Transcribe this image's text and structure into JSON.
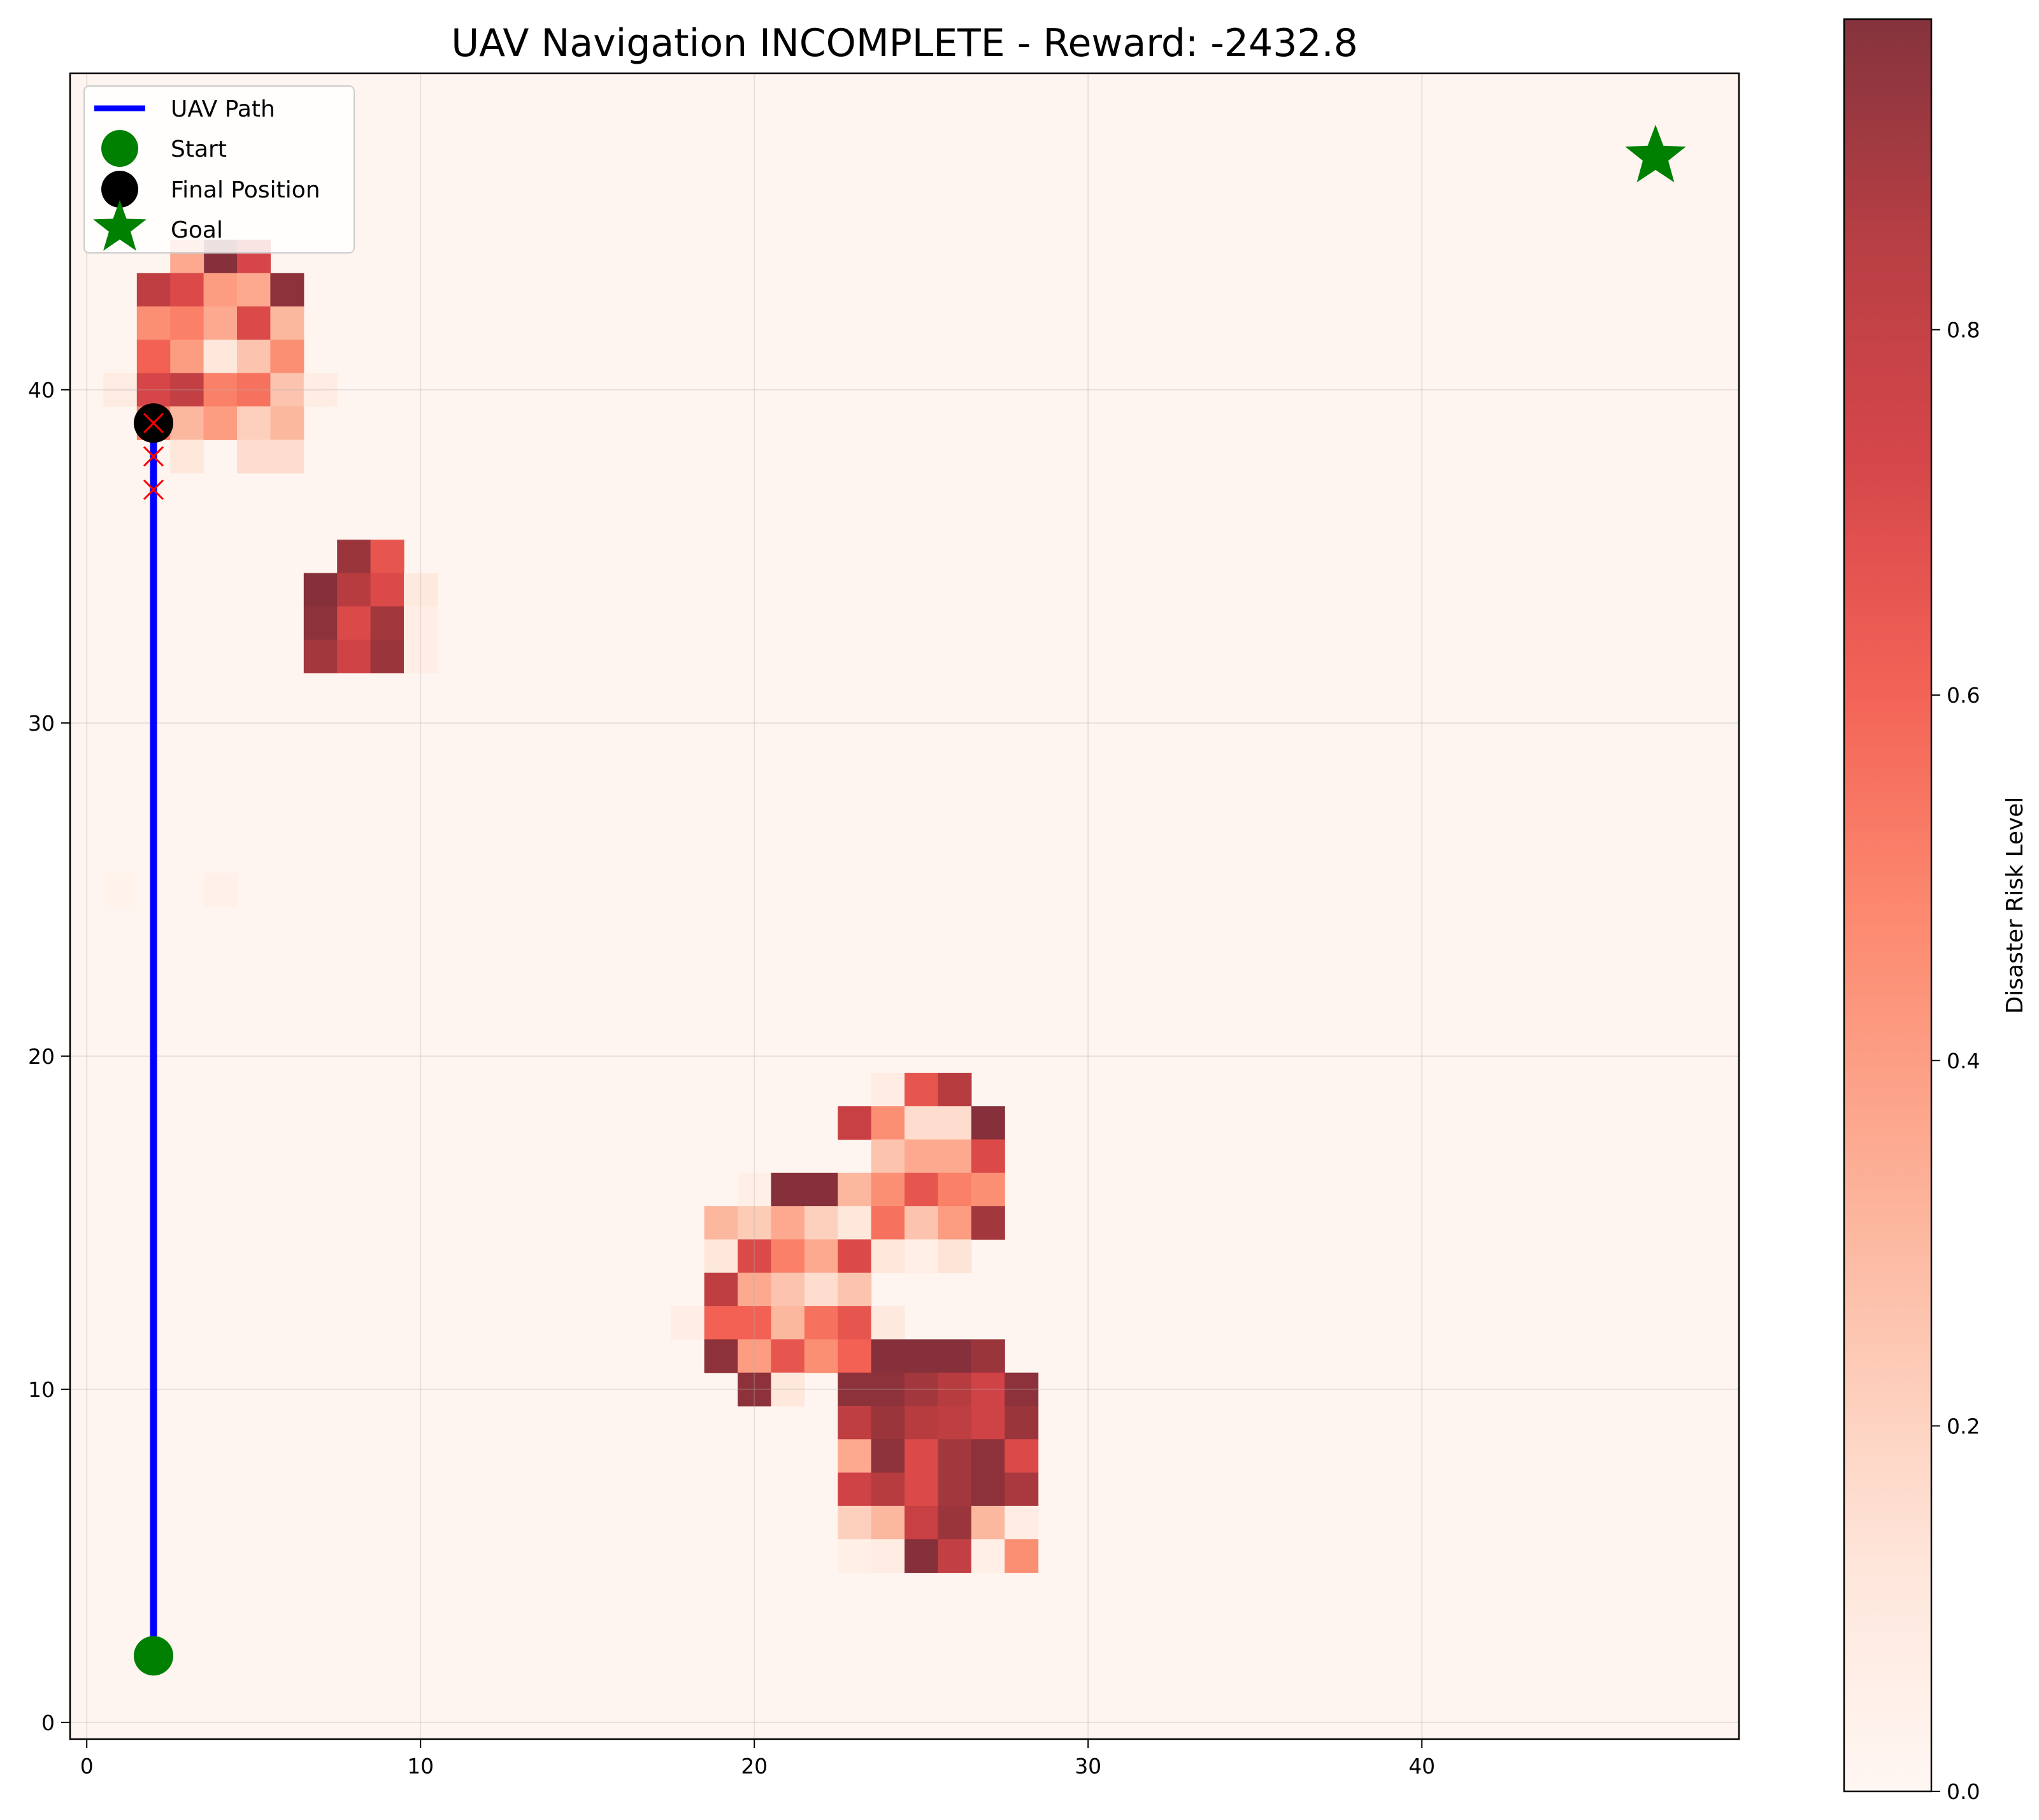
{
  "chart_data": {
    "type": "heatmap",
    "title": "UAV Navigation INCOMPLETE - Reward: -2432.8",
    "xlabel": "",
    "ylabel": "",
    "xlim": [
      -0.5,
      49.5
    ],
    "ylim": [
      -0.5,
      49.5
    ],
    "xticks": [
      0,
      10,
      20,
      30,
      40
    ],
    "yticks": [
      0,
      10,
      20,
      30,
      40
    ],
    "grid": true,
    "colormap": "Reds",
    "colorbar": {
      "label": "Disaster Risk Level",
      "range": [
        0.0,
        0.97
      ],
      "ticks": [
        0.0,
        0.2,
        0.4,
        0.6,
        0.8
      ]
    },
    "risk_cells": [
      [
        4,
        44,
        0.97
      ],
      [
        5,
        44,
        0.72
      ],
      [
        3,
        44,
        0.35
      ],
      [
        2,
        43,
        0.82
      ],
      [
        3,
        43,
        0.7
      ],
      [
        4,
        43,
        0.4
      ],
      [
        5,
        43,
        0.35
      ],
      [
        6,
        43,
        0.95
      ],
      [
        2,
        42,
        0.45
      ],
      [
        3,
        42,
        0.5
      ],
      [
        4,
        42,
        0.35
      ],
      [
        5,
        42,
        0.7
      ],
      [
        6,
        42,
        0.3
      ],
      [
        2,
        41,
        0.6
      ],
      [
        3,
        41,
        0.4
      ],
      [
        4,
        41,
        0.1
      ],
      [
        5,
        41,
        0.25
      ],
      [
        6,
        41,
        0.45
      ],
      [
        1,
        40,
        0.07
      ],
      [
        2,
        40,
        0.72
      ],
      [
        3,
        40,
        0.8
      ],
      [
        4,
        40,
        0.5
      ],
      [
        5,
        40,
        0.55
      ],
      [
        6,
        40,
        0.25
      ],
      [
        7,
        40,
        0.06
      ],
      [
        2,
        39,
        0.5
      ],
      [
        3,
        39,
        0.3
      ],
      [
        4,
        39,
        0.4
      ],
      [
        5,
        39,
        0.2
      ],
      [
        6,
        39,
        0.3
      ],
      [
        3,
        38,
        0.1
      ],
      [
        5,
        38,
        0.15
      ],
      [
        6,
        38,
        0.15
      ],
      [
        8,
        35,
        0.92
      ],
      [
        9,
        35,
        0.65
      ],
      [
        7,
        34,
        0.97
      ],
      [
        8,
        34,
        0.85
      ],
      [
        9,
        34,
        0.7
      ],
      [
        10,
        34,
        0.08
      ],
      [
        7,
        33,
        0.95
      ],
      [
        8,
        33,
        0.7
      ],
      [
        9,
        33,
        0.9
      ],
      [
        10,
        33,
        0.05
      ],
      [
        7,
        32,
        0.9
      ],
      [
        8,
        32,
        0.75
      ],
      [
        9,
        32,
        0.92
      ],
      [
        10,
        32,
        0.05
      ],
      [
        1,
        25,
        0.02
      ],
      [
        4,
        25,
        0.03
      ],
      [
        24,
        19,
        0.06
      ],
      [
        25,
        19,
        0.65
      ],
      [
        26,
        19,
        0.85
      ],
      [
        23,
        18,
        0.78
      ],
      [
        24,
        18,
        0.45
      ],
      [
        25,
        18,
        0.15
      ],
      [
        26,
        18,
        0.15
      ],
      [
        27,
        18,
        0.97
      ],
      [
        24,
        17,
        0.25
      ],
      [
        25,
        17,
        0.35
      ],
      [
        26,
        17,
        0.35
      ],
      [
        27,
        17,
        0.7
      ],
      [
        20,
        16,
        0.04
      ],
      [
        21,
        16,
        0.97
      ],
      [
        22,
        16,
        0.97
      ],
      [
        23,
        16,
        0.3
      ],
      [
        24,
        16,
        0.45
      ],
      [
        25,
        16,
        0.65
      ],
      [
        26,
        16,
        0.5
      ],
      [
        27,
        16,
        0.45
      ],
      [
        19,
        15,
        0.3
      ],
      [
        20,
        15,
        0.22
      ],
      [
        21,
        15,
        0.35
      ],
      [
        22,
        15,
        0.2
      ],
      [
        23,
        15,
        0.1
      ],
      [
        24,
        15,
        0.55
      ],
      [
        25,
        15,
        0.25
      ],
      [
        26,
        15,
        0.4
      ],
      [
        27,
        15,
        0.9
      ],
      [
        19,
        14,
        0.1
      ],
      [
        20,
        14,
        0.7
      ],
      [
        21,
        14,
        0.5
      ],
      [
        22,
        14,
        0.35
      ],
      [
        23,
        14,
        0.7
      ],
      [
        24,
        14,
        0.1
      ],
      [
        25,
        14,
        0.04
      ],
      [
        26,
        14,
        0.12
      ],
      [
        19,
        13,
        0.82
      ],
      [
        20,
        13,
        0.35
      ],
      [
        21,
        13,
        0.25
      ],
      [
        22,
        13,
        0.15
      ],
      [
        23,
        13,
        0.25
      ],
      [
        18,
        12,
        0.05
      ],
      [
        19,
        12,
        0.6
      ],
      [
        20,
        12,
        0.6
      ],
      [
        21,
        12,
        0.3
      ],
      [
        22,
        12,
        0.55
      ],
      [
        23,
        12,
        0.65
      ],
      [
        24,
        12,
        0.08
      ],
      [
        19,
        11,
        0.95
      ],
      [
        20,
        11,
        0.4
      ],
      [
        21,
        11,
        0.65
      ],
      [
        22,
        11,
        0.45
      ],
      [
        23,
        11,
        0.6
      ],
      [
        24,
        11,
        0.97
      ],
      [
        25,
        11,
        0.97
      ],
      [
        26,
        11,
        0.97
      ],
      [
        27,
        11,
        0.92
      ],
      [
        20,
        10,
        0.95
      ],
      [
        21,
        10,
        0.1
      ],
      [
        23,
        10,
        0.95
      ],
      [
        24,
        10,
        0.95
      ],
      [
        25,
        10,
        0.9
      ],
      [
        26,
        10,
        0.85
      ],
      [
        27,
        10,
        0.75
      ],
      [
        28,
        10,
        0.95
      ],
      [
        23,
        9,
        0.82
      ],
      [
        24,
        9,
        0.92
      ],
      [
        25,
        9,
        0.85
      ],
      [
        26,
        9,
        0.82
      ],
      [
        27,
        9,
        0.75
      ],
      [
        28,
        9,
        0.92
      ],
      [
        23,
        8,
        0.35
      ],
      [
        24,
        8,
        0.95
      ],
      [
        25,
        8,
        0.7
      ],
      [
        26,
        8,
        0.9
      ],
      [
        27,
        8,
        0.95
      ],
      [
        28,
        8,
        0.7
      ],
      [
        23,
        7,
        0.75
      ],
      [
        24,
        7,
        0.85
      ],
      [
        25,
        7,
        0.7
      ],
      [
        26,
        7,
        0.9
      ],
      [
        27,
        7,
        0.95
      ],
      [
        28,
        7,
        0.88
      ],
      [
        23,
        6,
        0.2
      ],
      [
        24,
        6,
        0.3
      ],
      [
        25,
        6,
        0.78
      ],
      [
        26,
        6,
        0.92
      ],
      [
        27,
        6,
        0.3
      ],
      [
        28,
        6,
        0.06
      ],
      [
        23,
        5,
        0.04
      ],
      [
        24,
        5,
        0.06
      ],
      [
        25,
        5,
        0.97
      ],
      [
        26,
        5,
        0.8
      ],
      [
        27,
        5,
        0.04
      ],
      [
        28,
        5,
        0.45
      ]
    ],
    "series": [
      {
        "name": "UAV Path",
        "type": "line",
        "color": "#0000ff",
        "x": [
          2,
          2
        ],
        "y": [
          2,
          39
        ]
      },
      {
        "name": "Start",
        "type": "scatter",
        "marker": "circle",
        "color": "#008000",
        "x": [
          2
        ],
        "y": [
          2
        ]
      },
      {
        "name": "Final Position",
        "type": "scatter",
        "marker": "circle",
        "color": "#000000",
        "x": [
          2
        ],
        "y": [
          39
        ]
      },
      {
        "name": "Goal",
        "type": "scatter",
        "marker": "star",
        "color": "#008000",
        "x": [
          47
        ],
        "y": [
          47
        ]
      }
    ],
    "collision_markers": {
      "color": "#ff0000",
      "marker": "x",
      "x": [
        2,
        2,
        2
      ],
      "y": [
        37,
        38,
        39
      ]
    },
    "legend_position": "upper-left",
    "legend": [
      "UAV Path",
      "Start",
      "Final Position",
      "Goal"
    ]
  }
}
